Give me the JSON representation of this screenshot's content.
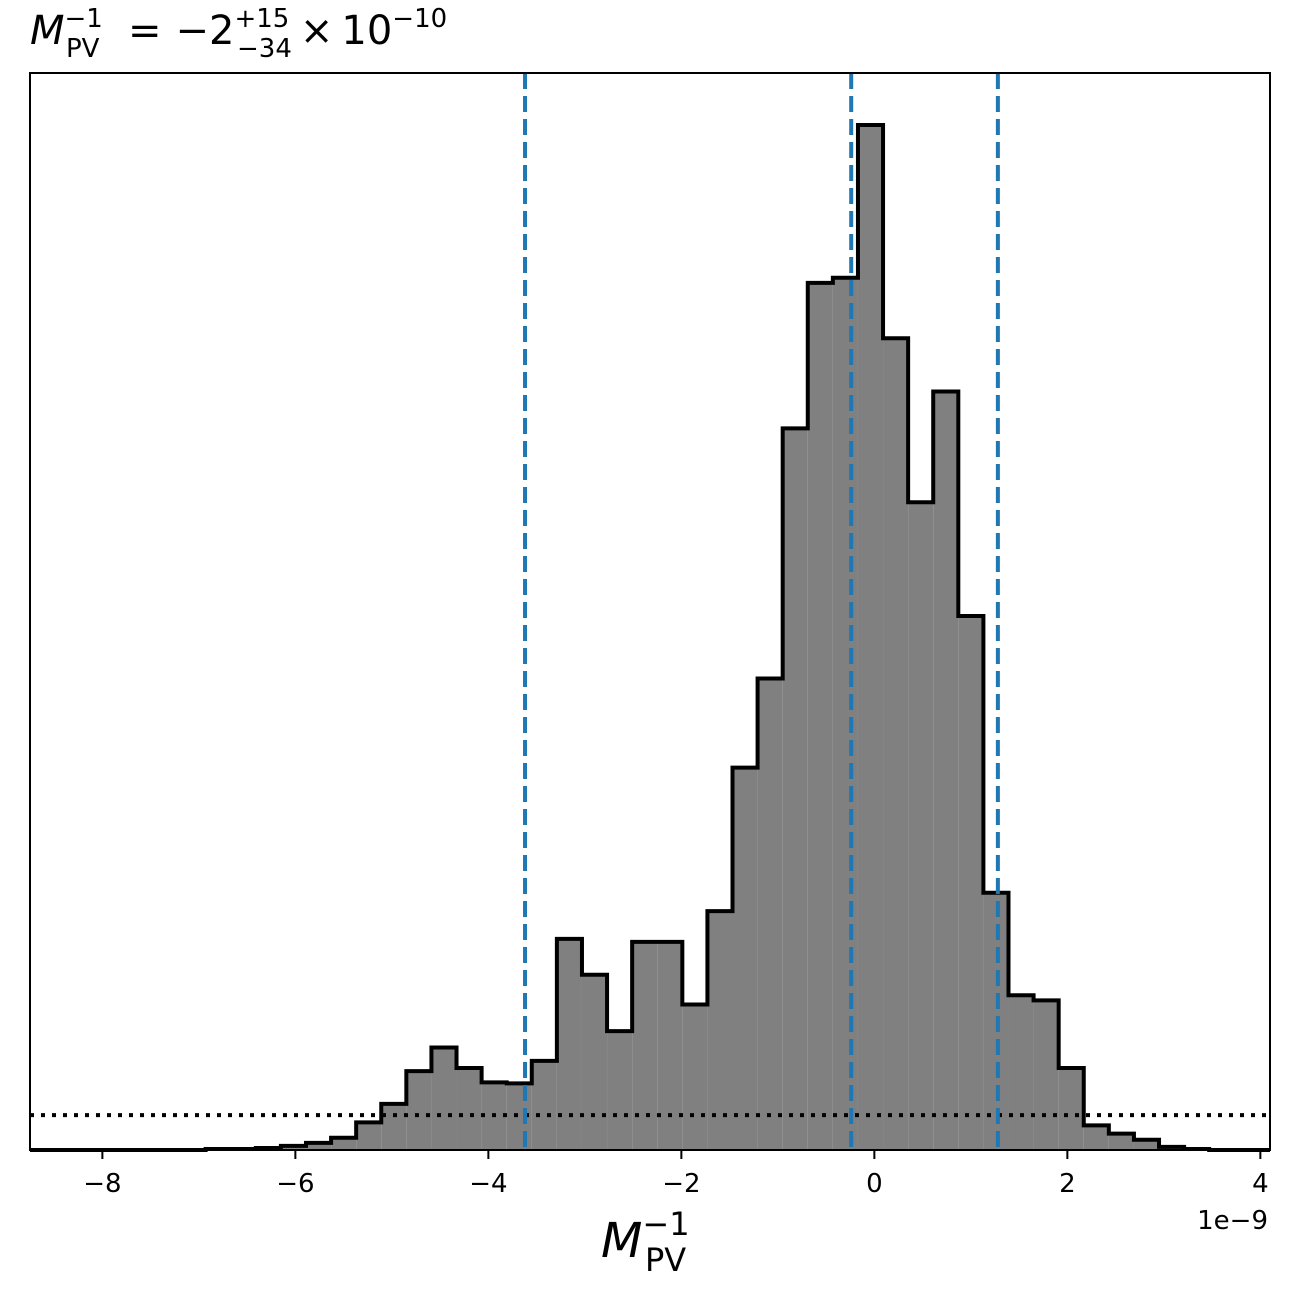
{
  "chart_data": {
    "type": "histogram",
    "title": {
      "lhs_base": "M",
      "lhs_sup": "−1",
      "lhs_sub": "PV",
      "equals": "=",
      "value": "−2",
      "err_plus": "+15",
      "err_minus": "−34",
      "times": "×",
      "exp_base": "10",
      "exp_power": "−10"
    },
    "xlabel": {
      "base": "M",
      "sup": "−1",
      "sub": "PV"
    },
    "offset_label": "1e−9",
    "x_unit_scale": 1e-09,
    "xlim": [
      -8.75,
      4.1
    ],
    "ylim": [
      0,
      1.05
    ],
    "x_ticks": [
      -8,
      -6,
      -4,
      -2,
      0,
      2,
      4
    ],
    "x_tick_labels": [
      "−8",
      "−6",
      "−4",
      "−2",
      "0",
      "2",
      "4"
    ],
    "y_ticks_shown": false,
    "bin_edges": [
      -8.75,
      -8.49,
      -8.23,
      -7.97,
      -7.71,
      -7.45,
      -7.19,
      -6.93,
      -6.67,
      -6.41,
      -6.15,
      -5.89,
      -5.63,
      -5.37,
      -5.11,
      -4.85,
      -4.59,
      -4.33,
      -4.07,
      -3.81,
      -3.55,
      -3.29,
      -3.03,
      -2.77,
      -2.51,
      -2.25,
      -1.99,
      -1.73,
      -1.47,
      -1.21,
      -0.95,
      -0.69,
      -0.43,
      -0.17,
      0.09,
      0.35,
      0.61,
      0.87,
      1.13,
      1.39,
      1.65,
      1.91,
      2.17,
      2.43,
      2.69,
      2.95,
      3.21,
      3.47,
      3.73,
      3.99,
      4.25
    ],
    "counts": [
      0,
      0,
      0,
      0,
      0,
      0,
      0,
      0.001,
      0.001,
      0.002,
      0.004,
      0.007,
      0.012,
      0.027,
      0.045,
      0.077,
      0.1,
      0.08,
      0.066,
      0.065,
      0.087,
      0.206,
      0.171,
      0.116,
      0.203,
      0.203,
      0.142,
      0.233,
      0.373,
      0.46,
      0.704,
      0.846,
      0.851,
      1.0,
      0.792,
      0.632,
      0.74,
      0.521,
      0.251,
      0.151,
      0.146,
      0.08,
      0.024,
      0.016,
      0.01,
      0.003,
      0.001,
      0,
      0,
      0
    ],
    "fill_color": "#808080",
    "edge_color": "#000000",
    "quantile_lines": {
      "values": [
        -3.62,
        -0.24,
        1.28
      ],
      "color": "#1f77b4",
      "style": "dashed"
    },
    "prior_line": {
      "value": 0.034,
      "color": "#000000",
      "style": "dotted"
    }
  }
}
